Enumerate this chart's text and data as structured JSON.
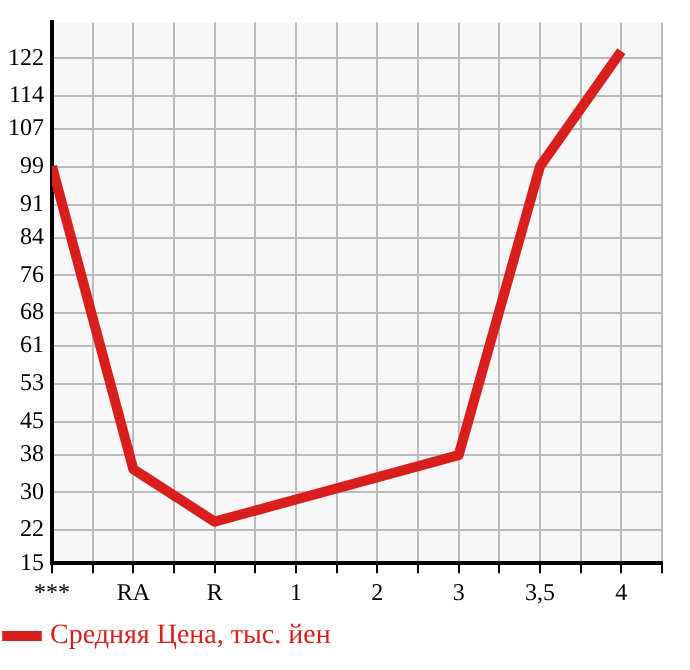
{
  "chart_data": {
    "type": "line",
    "categories": [
      "***",
      "RA",
      "R",
      "1",
      "2",
      "3",
      "3,5",
      "4"
    ],
    "series": [
      {
        "name": "Средняя Цена, тыс. йен",
        "color": "#d91e1e",
        "values": [
          99.1,
          34.9,
          23.8,
          null,
          null,
          37.9,
          99.1,
          123.5
        ]
      }
    ],
    "ylim": [
      15,
      129.6
    ],
    "yticks": [
      15,
      22,
      30,
      38,
      45,
      53,
      61,
      68,
      76,
      84,
      91,
      99,
      107,
      114,
      122
    ],
    "grid": true,
    "legend": "bottom left",
    "marker": "none",
    "line_style": "solid"
  }
}
